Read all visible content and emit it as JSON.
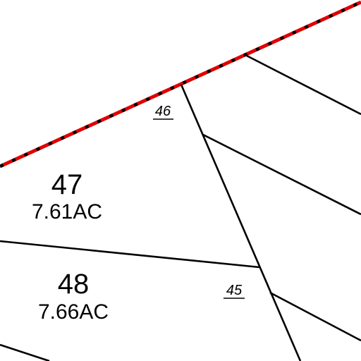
{
  "map": {
    "colors": {
      "background": "#ffffff",
      "parcel_line": "#000000",
      "boundary_red": "#e00000",
      "boundary_dash": "#000000"
    },
    "lots": [
      {
        "id": "47",
        "number": "47",
        "area": "7.61AC"
      },
      {
        "id": "48",
        "number": "48",
        "area": "7.66AC"
      }
    ],
    "partial_lots": [
      {
        "id": "46",
        "number": "46"
      },
      {
        "id": "45",
        "number": "45"
      }
    ]
  }
}
